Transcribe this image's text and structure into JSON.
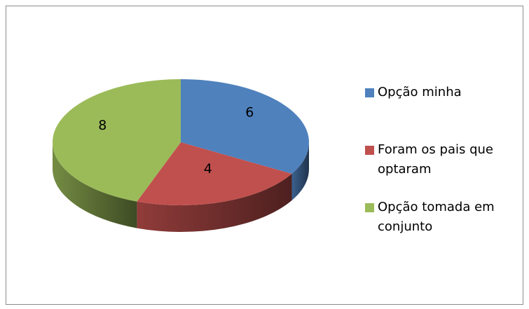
{
  "chart_data": {
    "type": "pie3d",
    "categories": [
      "Opção minha",
      "Foram os pais que optaram",
      "Opção tomada em conjunto"
    ],
    "values": [
      6,
      4,
      8
    ],
    "colors": [
      "#4f81bd",
      "#c0504d",
      "#9bbb59"
    ],
    "legend": "right"
  }
}
